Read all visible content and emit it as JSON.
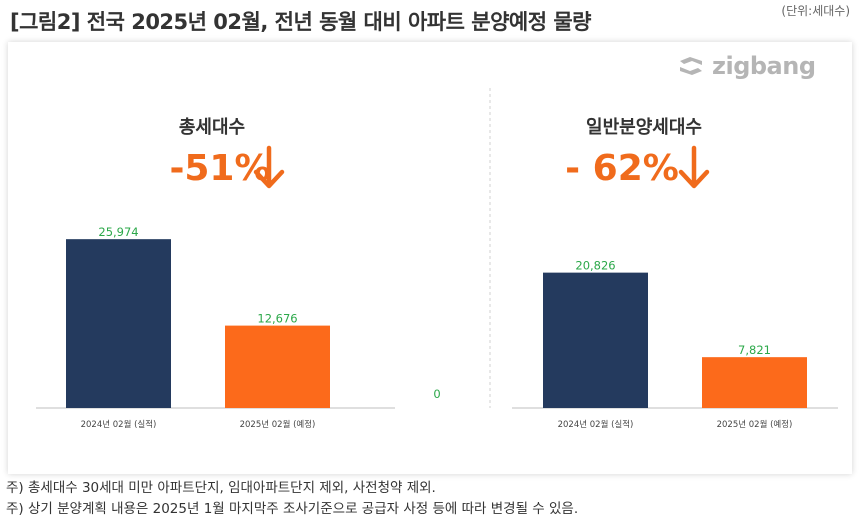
{
  "header": {
    "title": "[그림2] 전국 2025년 02월, 전년 동월 대비 아파트 분양예정 물량",
    "unit": "(단위:세대수)"
  },
  "brand": {
    "logo_text": "zigbang",
    "logo_icon": "zigbang-logo-icon"
  },
  "colors": {
    "navy": "#243a5e",
    "orange": "#fc6a1b",
    "label_green": "#2ca84a",
    "accent_orange": "#f06b1c",
    "axis": "#bfbfbf"
  },
  "chart_data": [
    {
      "type": "bar",
      "heading": "총세대수",
      "change": "-51%",
      "change_icon": "down-arrow-icon",
      "categories": [
        "2024년 02월 (실적)",
        "2025년 02월 (예정)"
      ],
      "values": [
        25974,
        12676
      ],
      "value_labels": [
        "25,974",
        "12,676"
      ],
      "ylim": [
        0,
        30000
      ]
    },
    {
      "type": "bar",
      "heading": "일반분양세대수",
      "change": "- 62%",
      "change_icon": "down-arrow-icon",
      "categories": [
        "2024년 02월 (실적)",
        "2025년 02월 (예정)"
      ],
      "values": [
        20826,
        7821
      ],
      "value_labels": [
        "20,826",
        "7,821"
      ],
      "ylim": [
        0,
        30000
      ]
    }
  ],
  "gap_label": "0",
  "notes": [
    "주) 총세대수 30세대 미만 아파트단지, 임대아파트단지 제외, 사전청약 제외.",
    "주) 상기 분양계획 내용은 2025년 1월  마지막주  조사기준으로 공급자 사정 등에 따라 변경될 수 있음."
  ]
}
